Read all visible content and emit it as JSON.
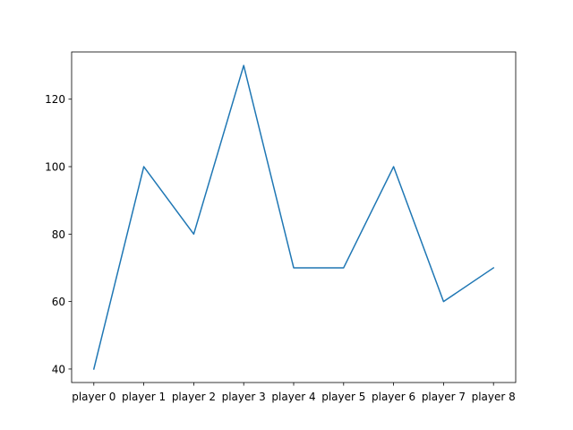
{
  "chart_data": {
    "type": "line",
    "categories": [
      "player 0",
      "player 1",
      "player 2",
      "player 3",
      "player 4",
      "player 5",
      "player 6",
      "player 7",
      "player 8"
    ],
    "series": [
      {
        "values": [
          40,
          100,
          80,
          130,
          70,
          70,
          100,
          60,
          70
        ]
      }
    ],
    "ylim": [
      36,
      134
    ],
    "yticks": [
      40,
      60,
      80,
      100,
      120
    ],
    "grid": false,
    "legend": "none",
    "colors": {
      "line": "#1f77b4",
      "axes": "#000000",
      "background": "#ffffff"
    }
  }
}
